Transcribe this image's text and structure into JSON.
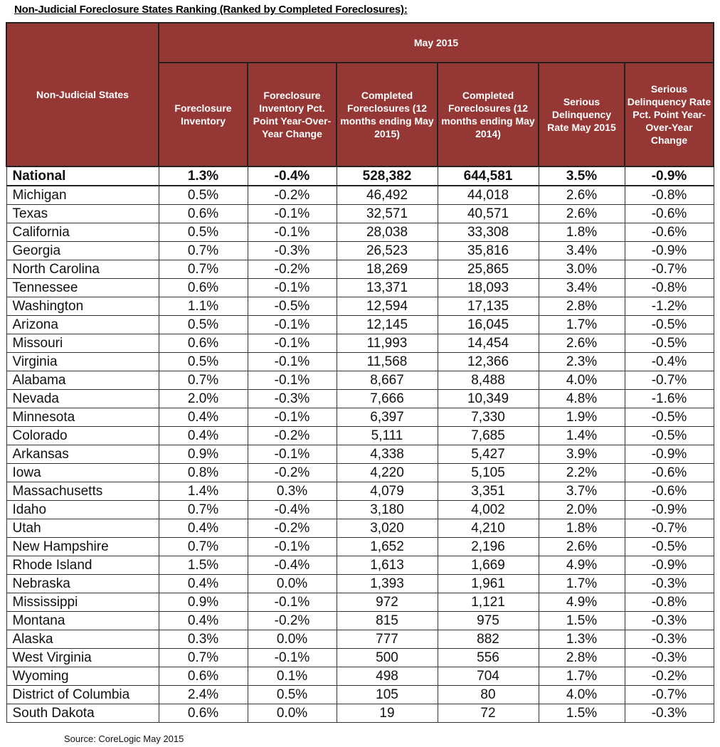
{
  "title": "Non-Judicial Foreclosure States Ranking (Ranked by Completed Foreclosures):",
  "header": {
    "row_label": "Non-Judicial States",
    "period": "May 2015",
    "columns": [
      "Foreclosure Inventory",
      "Foreclosure Inventory Pct. Point Year-Over-Year Change",
      "Completed Foreclosures (12 months ending May 2015)",
      "Completed Foreclosures (12 months ending May 2014)",
      "Serious Delinquency Rate May 2015",
      "Serious Delinquency Rate Pct. Point Year-Over-Year Change"
    ],
    "color": "#953735"
  },
  "rows": [
    {
      "name": "National",
      "values": [
        "1.3%",
        "-0.4%",
        "528,382",
        "644,581",
        "3.5%",
        "-0.9%"
      ]
    },
    {
      "name": "Michigan",
      "values": [
        "0.5%",
        "-0.2%",
        "46,492",
        "44,018",
        "2.6%",
        "-0.8%"
      ]
    },
    {
      "name": "Texas",
      "values": [
        "0.6%",
        "-0.1%",
        "32,571",
        "40,571",
        "2.6%",
        "-0.6%"
      ]
    },
    {
      "name": "California",
      "values": [
        "0.5%",
        "-0.1%",
        "28,038",
        "33,308",
        "1.8%",
        "-0.6%"
      ]
    },
    {
      "name": "Georgia",
      "values": [
        "0.7%",
        "-0.3%",
        "26,523",
        "35,816",
        "3.4%",
        "-0.9%"
      ]
    },
    {
      "name": "North Carolina",
      "values": [
        "0.7%",
        "-0.2%",
        "18,269",
        "25,865",
        "3.0%",
        "-0.7%"
      ]
    },
    {
      "name": "Tennessee",
      "values": [
        "0.6%",
        "-0.1%",
        "13,371",
        "18,093",
        "3.4%",
        "-0.8%"
      ]
    },
    {
      "name": "Washington",
      "values": [
        "1.1%",
        "-0.5%",
        "12,594",
        "17,135",
        "2.8%",
        "-1.2%"
      ]
    },
    {
      "name": "Arizona",
      "values": [
        "0.5%",
        "-0.1%",
        "12,145",
        "16,045",
        "1.7%",
        "-0.5%"
      ]
    },
    {
      "name": "Missouri",
      "values": [
        "0.6%",
        "-0.1%",
        "11,993",
        "14,454",
        "2.6%",
        "-0.5%"
      ]
    },
    {
      "name": "Virginia",
      "values": [
        "0.5%",
        "-0.1%",
        "11,568",
        "12,366",
        "2.3%",
        "-0.4%"
      ]
    },
    {
      "name": "Alabama",
      "values": [
        "0.7%",
        "-0.1%",
        "8,667",
        "8,488",
        "4.0%",
        "-0.7%"
      ]
    },
    {
      "name": "Nevada",
      "values": [
        "2.0%",
        "-0.3%",
        "7,666",
        "10,349",
        "4.8%",
        "-1.6%"
      ]
    },
    {
      "name": "Minnesota",
      "values": [
        "0.4%",
        "-0.1%",
        "6,397",
        "7,330",
        "1.9%",
        "-0.5%"
      ]
    },
    {
      "name": "Colorado",
      "values": [
        "0.4%",
        "-0.2%",
        "5,111",
        "7,685",
        "1.4%",
        "-0.5%"
      ]
    },
    {
      "name": "Arkansas",
      "values": [
        "0.9%",
        "-0.1%",
        "4,338",
        "5,427",
        "3.9%",
        "-0.9%"
      ]
    },
    {
      "name": "Iowa",
      "values": [
        "0.8%",
        "-0.2%",
        "4,220",
        "5,105",
        "2.2%",
        "-0.6%"
      ]
    },
    {
      "name": "Massachusetts",
      "values": [
        "1.4%",
        "0.3%",
        "4,079",
        "3,351",
        "3.7%",
        "-0.6%"
      ]
    },
    {
      "name": "Idaho",
      "values": [
        "0.7%",
        "-0.4%",
        "3,180",
        "4,002",
        "2.0%",
        "-0.9%"
      ]
    },
    {
      "name": "Utah",
      "values": [
        "0.4%",
        "-0.2%",
        "3,020",
        "4,210",
        "1.8%",
        "-0.7%"
      ]
    },
    {
      "name": "New Hampshire",
      "values": [
        "0.7%",
        "-0.1%",
        "1,652",
        "2,196",
        "2.6%",
        "-0.5%"
      ]
    },
    {
      "name": "Rhode Island",
      "values": [
        "1.5%",
        "-0.4%",
        "1,613",
        "1,669",
        "4.9%",
        "-0.9%"
      ]
    },
    {
      "name": "Nebraska",
      "values": [
        "0.4%",
        "0.0%",
        "1,393",
        "1,961",
        "1.7%",
        "-0.3%"
      ]
    },
    {
      "name": "Mississippi",
      "values": [
        "0.9%",
        "-0.1%",
        "972",
        "1,121",
        "4.9%",
        "-0.8%"
      ]
    },
    {
      "name": "Montana",
      "values": [
        "0.4%",
        "-0.2%",
        "815",
        "975",
        "1.5%",
        "-0.3%"
      ]
    },
    {
      "name": "Alaska",
      "values": [
        "0.3%",
        "0.0%",
        "777",
        "882",
        "1.3%",
        "-0.3%"
      ]
    },
    {
      "name": "West Virginia",
      "values": [
        "0.7%",
        "-0.1%",
        "500",
        "556",
        "2.8%",
        "-0.3%"
      ]
    },
    {
      "name": "Wyoming",
      "values": [
        "0.6%",
        "0.1%",
        "498",
        "704",
        "1.7%",
        "-0.2%"
      ]
    },
    {
      "name": "District of Columbia",
      "values": [
        "2.4%",
        "0.5%",
        "105",
        "80",
        "4.0%",
        "-0.7%"
      ]
    },
    {
      "name": "South Dakota",
      "values": [
        "0.6%",
        "0.0%",
        "19",
        "72",
        "1.5%",
        "-0.3%"
      ]
    }
  ],
  "source": "Source: CoreLogic May 2015"
}
